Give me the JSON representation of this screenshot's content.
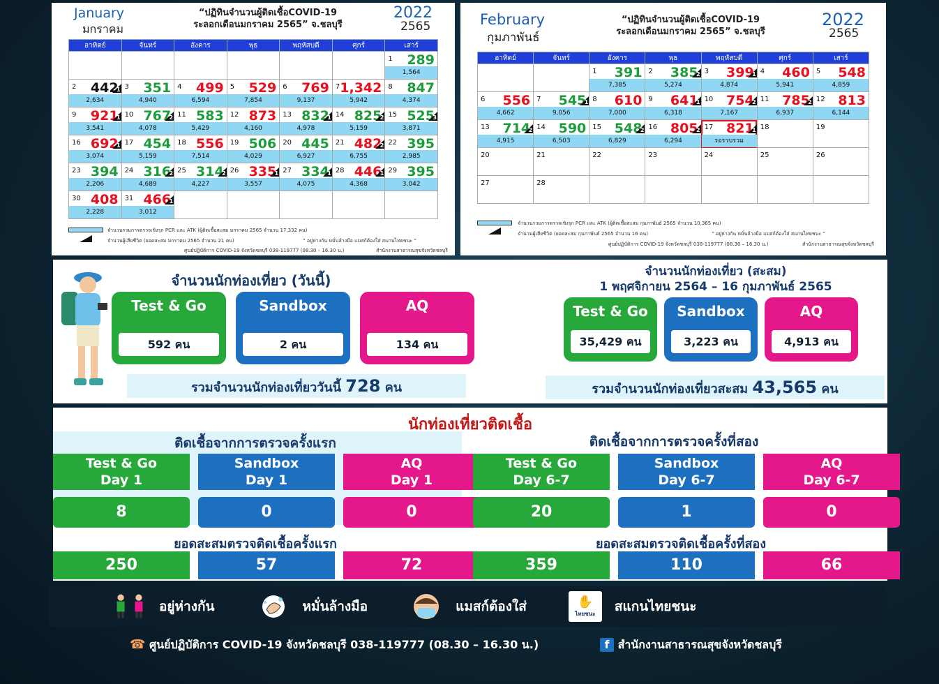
{
  "jan": {
    "month_en": "January",
    "month_th": "มกราคม",
    "title1": "“ปฏิทินจำนวนผู้ติดเชื้อCOVID-19",
    "title2": "ระลอกเดือนมกราคม 2565” จ.ชลบุรี",
    "year": "2022",
    "year_th": "2565",
    "weekdays": [
      "อาทิตย์",
      "จันทร์",
      "อังคาร",
      "พุธ",
      "พฤหัสบดี",
      "ศุกร์",
      "เสาร์"
    ],
    "cells": [
      [
        "",
        "",
        "",
        "",
        "",
        "",
        {
          "d": "1",
          "v": "289",
          "t": "1,564",
          "c": "g"
        }
      ],
      [
        {
          "d": "2",
          "v": "442",
          "t": "2,634",
          "x": "1",
          "c": "l"
        },
        {
          "d": "3",
          "v": "351",
          "t": "4,940",
          "c": "g"
        },
        {
          "d": "4",
          "v": "499",
          "t": "6,594"
        },
        {
          "d": "5",
          "v": "529",
          "t": "7,854"
        },
        {
          "d": "6",
          "v": "769",
          "t": "9,137"
        },
        {
          "d": "7",
          "v": "1,342",
          "t": "5,942"
        },
        {
          "d": "8",
          "v": "847",
          "t": "4,374",
          "c": "g"
        }
      ],
      [
        {
          "d": "9",
          "v": "921",
          "t": "3,541",
          "x": "1"
        },
        {
          "d": "10",
          "v": "767",
          "t": "4,078",
          "x": "2",
          "c": "g"
        },
        {
          "d": "11",
          "v": "583",
          "t": "5,429",
          "c": "g"
        },
        {
          "d": "12",
          "v": "873",
          "t": "4,160"
        },
        {
          "d": "13",
          "v": "832",
          "t": "4,978",
          "x": "1",
          "c": "g"
        },
        {
          "d": "14",
          "v": "825",
          "t": "5,159",
          "x": "2",
          "c": "g"
        },
        {
          "d": "15",
          "v": "525",
          "t": "3,871",
          "x": "3",
          "c": "g"
        }
      ],
      [
        {
          "d": "16",
          "v": "692",
          "t": "3,074",
          "x": "1"
        },
        {
          "d": "17",
          "v": "454",
          "t": "5,159",
          "c": "g"
        },
        {
          "d": "18",
          "v": "556",
          "t": "7,514"
        },
        {
          "d": "19",
          "v": "506",
          "t": "4,029",
          "c": "g"
        },
        {
          "d": "20",
          "v": "445",
          "t": "6,927",
          "c": "g"
        },
        {
          "d": "21",
          "v": "482",
          "t": "6,755",
          "x": "2"
        },
        {
          "d": "22",
          "v": "395",
          "t": "2,985",
          "c": "g"
        }
      ],
      [
        {
          "d": "23",
          "v": "394",
          "t": "2,206",
          "c": "g"
        },
        {
          "d": "24",
          "v": "316",
          "t": "4,689",
          "x": "2",
          "c": "g"
        },
        {
          "d": "25",
          "v": "314",
          "t": "4,227",
          "x": "2",
          "c": "g"
        },
        {
          "d": "26",
          "v": "335",
          "t": "3,557",
          "x": "1"
        },
        {
          "d": "27",
          "v": "334",
          "t": "4,075",
          "x": "1",
          "c": "g"
        },
        {
          "d": "28",
          "v": "446",
          "t": "4,368",
          "x": "1"
        },
        {
          "d": "29",
          "v": "395",
          "t": "3,042",
          "c": "g"
        }
      ],
      [
        {
          "d": "30",
          "v": "408",
          "t": "2,228"
        },
        {
          "d": "31",
          "v": "466",
          "t": "3,012",
          "x": "1"
        },
        "",
        "",
        "",
        "",
        ""
      ]
    ],
    "note1": "จำนวนรวมการตรวจเชิงรุก PCR และ ATK (ผู้ติดเชื้อสะสม มกราคม 2565 จำนวน 17,332 คน)",
    "note2": "จำนวนผู้เสียชีวิต (ยอดสะสม มกราคม 2565 จำนวน 21 คน)",
    "note3": "“ อยู่ห่างกัน หมั่นล้างมือ แมสก์ต้องใส่ สแกนไทยชนะ ”",
    "note4": "ศูนย์ปฏิบัติการ COVID-19 จังหวัดชลบุรี 038-119777 (08.30 – 16.30 น.)",
    "note5": "สำนักงานสาธารณสุขจังหวัดชลบุรี"
  },
  "feb": {
    "month_en": "February",
    "month_th": "กุมภาพันธ์",
    "title1": "“ปฏิทินจำนวนผู้ติดเชื้อCOVID-19",
    "title2": "ระลอกเดือนมกราคม 2565” จ.ชลบุรี",
    "year": "2022",
    "year_th": "2565",
    "weekdays": [
      "อาทิตย์",
      "จันทร์",
      "อังคาร",
      "พุธ",
      "พฤหัสบดี",
      "ศุกร์",
      "เสาร์"
    ],
    "cells": [
      [
        "",
        "",
        {
          "d": "1",
          "v": "391",
          "t": "7,385",
          "c": "g"
        },
        {
          "d": "2",
          "v": "385",
          "t": "5,274",
          "x": "2",
          "c": "g"
        },
        {
          "d": "3",
          "v": "399",
          "t": "4,874",
          "x": "1"
        },
        {
          "d": "4",
          "v": "460",
          "t": "5,941"
        },
        {
          "d": "5",
          "v": "548",
          "t": "4,859"
        }
      ],
      [
        {
          "d": "6",
          "v": "556",
          "t": "4,662"
        },
        {
          "d": "7",
          "v": "545",
          "t": "9,056",
          "x": "1",
          "c": "g"
        },
        {
          "d": "8",
          "v": "610",
          "t": "7,000"
        },
        {
          "d": "9",
          "v": "641",
          "t": "6,318",
          "x": "1"
        },
        {
          "d": "10",
          "v": "754",
          "t": "7,167",
          "x": "2"
        },
        {
          "d": "11",
          "v": "785",
          "t": "6,937",
          "x": "2"
        },
        {
          "d": "12",
          "v": "813",
          "t": "6,144"
        }
      ],
      [
        {
          "d": "13",
          "v": "714",
          "t": "4,915",
          "x": "2",
          "c": "g"
        },
        {
          "d": "14",
          "v": "590",
          "t": "6,503",
          "c": "g"
        },
        {
          "d": "15",
          "v": "548",
          "t": "6,829",
          "x": "2",
          "c": "g"
        },
        {
          "d": "16",
          "v": "805",
          "t": "6,294",
          "x": "2"
        },
        {
          "d": "17",
          "v": "821",
          "t": "รอรวบรวม",
          "x": "1",
          "h": "1"
        },
        {
          "d": "18"
        },
        {
          "d": "19"
        }
      ],
      [
        {
          "d": "20"
        },
        {
          "d": "21"
        },
        {
          "d": "22"
        },
        {
          "d": "23"
        },
        {
          "d": "24"
        },
        {
          "d": "25"
        },
        {
          "d": "26"
        }
      ],
      [
        {
          "d": "27"
        },
        {
          "d": "28"
        },
        "",
        "",
        "",
        "",
        ""
      ]
    ],
    "note1": "จำนวนรวมการตรวจเชิงรุก PCR และ ATK (ผู้ติดเชื้อสะสม กุมภาพันธ์ 2565 จำนวน 10,365 คน)",
    "note2": "จำนวนผู้เสียชีวิต (ยอดสะสม กุมภาพันธ์ 2565 จำนวน 16 คน)",
    "note3": "“ อยู่ห่างกัน หมั่นล้างมือ แมสก์ต้องใส่ สแกนไทยชนะ ”",
    "note4": "ศูนย์ปฏิบัติการ COVID-19 จังหวัดชลบุรี 038-119777 (08.30 – 16.30 น.)",
    "note5": "สำนักงานสาธารณสุขจังหวัดชลบุรี"
  },
  "today": {
    "title": "จำนวนนักท่องเที่ยว (วันนี้)",
    "cards": [
      {
        "label": "Test & Go",
        "value": "592 คน"
      },
      {
        "label": "Sandbox",
        "value": "2 คน"
      },
      {
        "label": "AQ",
        "value": "134 คน"
      }
    ],
    "sum_label": "รวมจำนวนนักท่องเที่ยววันนี้",
    "sum_value": "728",
    "sum_unit": "คน"
  },
  "cum": {
    "title1": "จำนวนนักท่องเที่ยว (สะสม)",
    "title2": "1 พฤศจิกายน 2564 – 16 กุมภาพันธ์ 2565",
    "cards": [
      {
        "label": "Test & Go",
        "value": "35,429 คน"
      },
      {
        "label": "Sandbox",
        "value": "3,223 คน"
      },
      {
        "label": "AQ",
        "value": "4,913 คน"
      }
    ],
    "sum_label": "รวมจำนวนนักท่องเที่ยวสะสม",
    "sum_value": "43,565",
    "sum_unit": "คน"
  },
  "infected": {
    "title": "นักท่องเที่ยวติดเชื้อ",
    "first_title": "ติดเชื้อจากการตรวจครั้งแรก",
    "second_title": "ติดเชื้อจากการตรวจครั้งที่สอง",
    "first": [
      {
        "l1": "Test & Go",
        "l2": "Day 1",
        "v": "8",
        "cum": "250"
      },
      {
        "l1": "Sandbox",
        "l2": "Day 1",
        "v": "0",
        "cum": "57"
      },
      {
        "l1": "AQ",
        "l2": "Day 1",
        "v": "0",
        "cum": "72"
      }
    ],
    "second": [
      {
        "l1": "Test & Go",
        "l2": "Day 6-7",
        "v": "20",
        "cum": "359"
      },
      {
        "l1": "Sandbox",
        "l2": "Day 6-7",
        "v": "1",
        "cum": "110"
      },
      {
        "l1": "AQ",
        "l2": "Day 6-7",
        "v": "0",
        "cum": "66"
      }
    ],
    "first_cum_title": "ยอดสะสมตรวจติดเชื้อครั้งแรก",
    "second_cum_title": "ยอดสะสมตรวจติดเชื้อครั้งที่สอง"
  },
  "measures": [
    {
      "icon": "distance-icon",
      "label": "อยู่ห่างกัน"
    },
    {
      "icon": "handwash-icon",
      "label": "หมั่นล้างมือ"
    },
    {
      "icon": "mask-icon",
      "label": "แมสก์ต้องใส่"
    },
    {
      "icon": "thaichana-icon",
      "label": "สแกนไทยชนะ",
      "icon_text": "ไทยชนะ"
    }
  ],
  "footer": {
    "center": "ศูนย์ปฏิบัติการ COVID-19 จังหวัดชลบุรี 038-119777 (08.30 – 16.30 น.)",
    "office": "สำนักงานสาธารณสุขจังหวัดชลบุรี"
  },
  "colors": {
    "green": "#27a83a",
    "blue": "#1d6fbf",
    "pink": "#e5188b",
    "red": "#e8101f"
  }
}
